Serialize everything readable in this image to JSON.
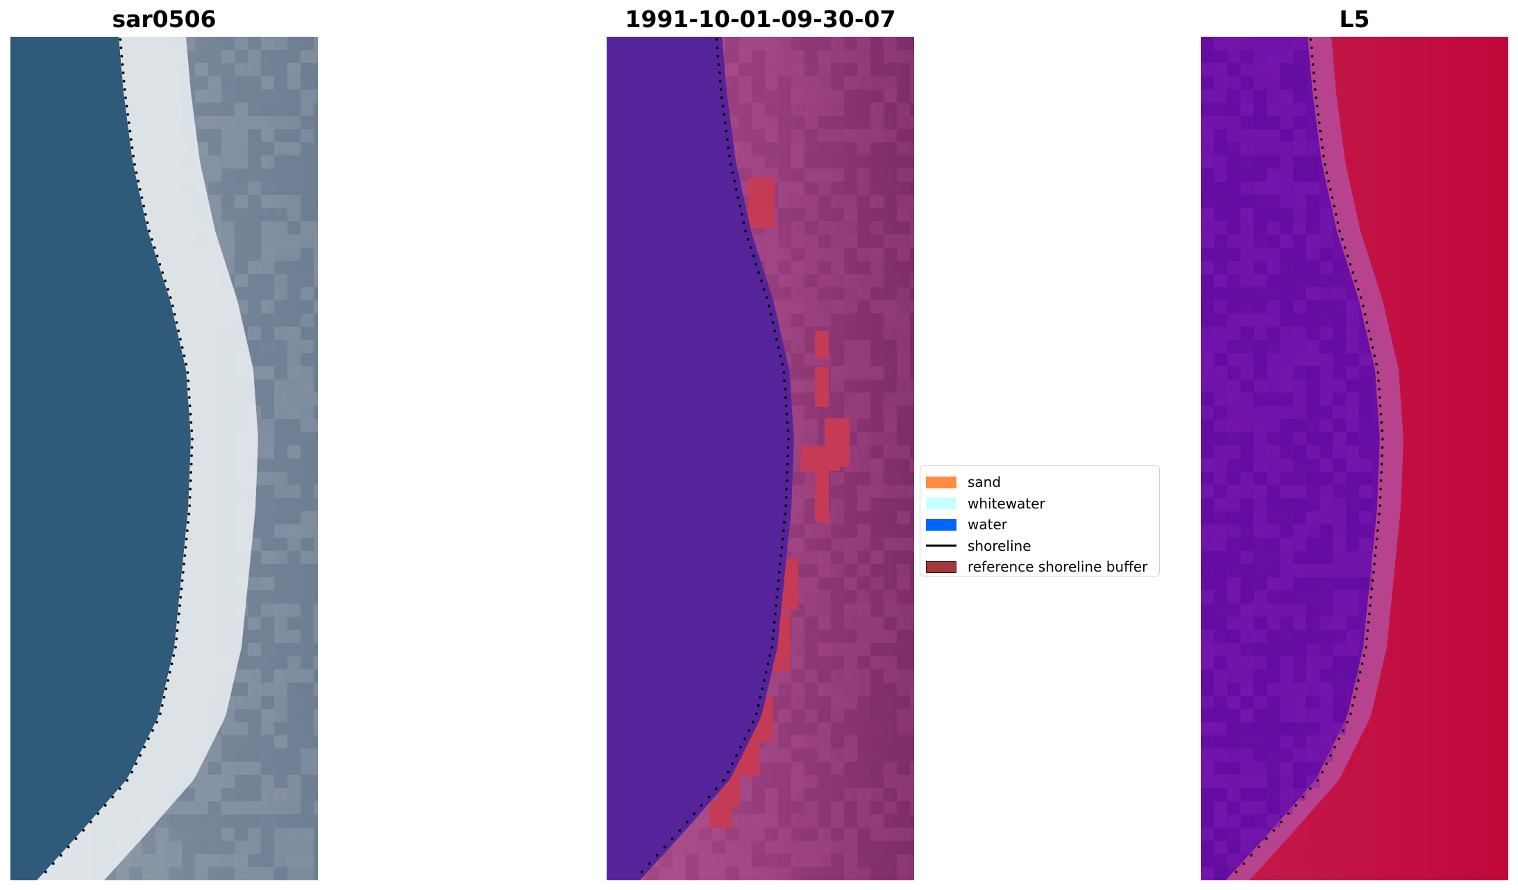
{
  "panels": [
    {
      "id": "rgb",
      "title": "sar0506"
    },
    {
      "id": "classified",
      "title": "1991-10-01-09-30-07"
    },
    {
      "id": "index",
      "title": "L5"
    }
  ],
  "legend": {
    "items": [
      {
        "label": "sand",
        "color": "#ff8c3f",
        "kind": "patch"
      },
      {
        "label": "whitewater",
        "color": "#c8ffff",
        "kind": "patch"
      },
      {
        "label": "water",
        "color": "#0064ff",
        "kind": "patch"
      },
      {
        "label": "shoreline",
        "color": "#000000",
        "kind": "line"
      },
      {
        "label": "reference shoreline buffer",
        "color": "#a33a3a",
        "kind": "patch"
      }
    ]
  },
  "colors": {
    "rgb_water": "#2f5a7a",
    "rgb_beach": "#e6ecef",
    "rgb_land": "#7f8b9a",
    "class_water": "#55249a",
    "class_land": "#b0518f",
    "class_dark": "#7f2d68",
    "class_buffer": "#c53b55",
    "index_water": "#6a0fa6",
    "index_transition": "#b7438f",
    "index_land": "#c1133f"
  }
}
